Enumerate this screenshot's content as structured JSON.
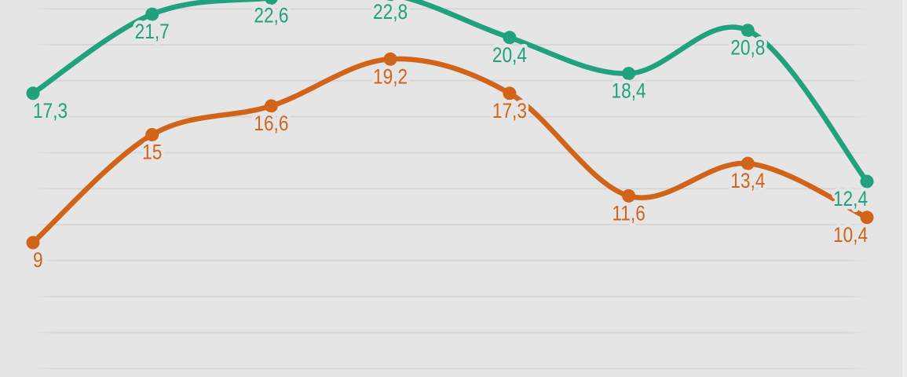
{
  "chart_data": {
    "type": "line",
    "style": "smooth-spline-with-point-markers-and-value-labels",
    "title": "",
    "legend": "none",
    "series": [
      {
        "name": "series-green",
        "color": "#21a17c",
        "values": [
          17.3,
          21.7,
          22.6,
          22.8,
          20.4,
          18.4,
          20.8,
          12.4
        ],
        "labels": [
          "17,3",
          "21,7",
          "22,6",
          "22,8",
          "20,4",
          "18,4",
          "20,8",
          "12,4"
        ]
      },
      {
        "name": "series-orange",
        "color": "#d26419",
        "values": [
          9,
          15,
          16.6,
          19.2,
          17.3,
          11.6,
          13.4,
          10.4
        ],
        "labels": [
          "9",
          "15",
          "16,6",
          "19,2",
          "17,3",
          "11,6",
          "13,4",
          "10,4"
        ]
      }
    ],
    "axis": {
      "grid": true,
      "gridline_values": [
        2,
        4,
        6,
        8,
        10,
        12,
        14,
        16,
        18,
        20,
        22
      ],
      "units_per_gridline": 2,
      "x_tick_labels_visible": false,
      "y_tick_labels_visible": false
    }
  },
  "colors": {
    "background": "#e5e5e5",
    "gridline": "#d6d6d6",
    "series_green": "#21a17c",
    "series_orange": "#d26419",
    "right_edge_strip": "#ededed"
  }
}
